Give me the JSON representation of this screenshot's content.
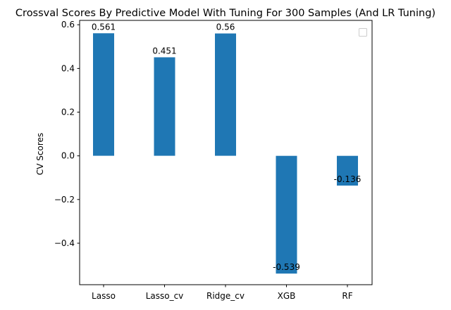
{
  "chart_data": {
    "type": "bar",
    "title": "Crossval Scores By Predictive Model With Tuning For 300 Samples (And LR Tuning)",
    "xlabel": "",
    "ylabel": "CV Scores",
    "categories": [
      "Lasso",
      "Lasso_cv",
      "Ridge_cv",
      "XGB",
      "RF"
    ],
    "values": [
      0.561,
      0.451,
      0.56,
      -0.539,
      -0.136
    ],
    "value_labels": [
      "0.561",
      "0.451",
      "0.56",
      "-0.539",
      "-0.136"
    ],
    "ylim": [
      -0.59,
      0.62
    ],
    "yticks": [
      0.6,
      0.4,
      0.2,
      0.0,
      -0.2,
      -0.4
    ],
    "ytick_labels": [
      "0.6",
      "0.4",
      "0.2",
      "0.0",
      "−0.2",
      "−0.4"
    ],
    "bar_color": "#1f77b4",
    "grid": false,
    "legend": {
      "placement": "top-right",
      "entries": []
    }
  }
}
